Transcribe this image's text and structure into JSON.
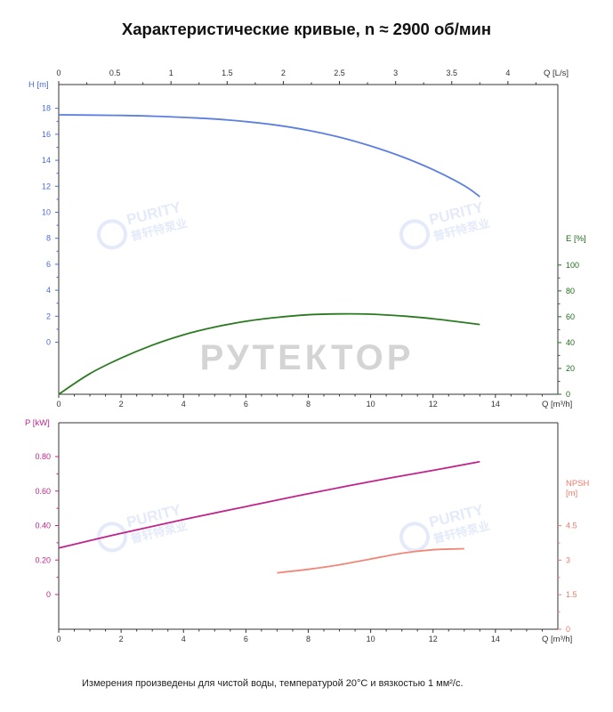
{
  "title": "Характеристические кривые, n ≈ 2900 об/мин",
  "footnote": "Измерения произведены для чистой воды, температурой 20°C и вязкостью 1 мм²/с.",
  "watermarks": {
    "center": "РУТЕКТОР",
    "logo_en": "PURITY",
    "logo_cn": "普轩特泵业"
  },
  "colors": {
    "head": "#5b7fe0",
    "efficiency": "#2a7a20",
    "power": "#c0248c",
    "npsh": "#f08878",
    "head_axis": "#4a6ad8",
    "eff_axis": "#1f6e1a",
    "power_axis": "#c0248c",
    "npsh_axis": "#ef7a6a",
    "axis": "#333333"
  },
  "chart_data": [
    {
      "type": "line",
      "x_label": "Q [m³/h]",
      "x_ticks": [
        "0",
        "2",
        "4",
        "6",
        "8",
        "10",
        "12",
        "14"
      ],
      "x_top_label": "Q [L/s]",
      "x_top_ticks": [
        "0",
        "0.5",
        "1",
        "1.5",
        "2",
        "2.5",
        "3",
        "3.5",
        "4"
      ],
      "xlim": [
        0,
        16
      ],
      "y_left_label": "H [m]",
      "y_left_ticks": [
        "0",
        "2",
        "4",
        "6",
        "8",
        "10",
        "12",
        "14",
        "16",
        "18"
      ],
      "y_right_label": "E [%]",
      "y_right_ticks": [
        "0",
        "20",
        "40",
        "60",
        "80",
        "100"
      ],
      "series": [
        {
          "name": "H [m]",
          "axis": "left",
          "x": [
            0,
            1,
            2,
            3,
            4,
            5,
            6,
            7,
            8,
            9,
            10,
            11,
            12,
            13,
            13.5
          ],
          "y": [
            17.5,
            17.48,
            17.45,
            17.4,
            17.3,
            17.18,
            16.98,
            16.7,
            16.3,
            15.78,
            15.1,
            14.28,
            13.28,
            12.05,
            11.2
          ]
        },
        {
          "name": "E [%]",
          "axis": "right",
          "x": [
            0,
            1,
            2,
            3,
            4,
            5,
            6,
            7,
            8,
            9,
            10,
            11,
            12,
            13,
            13.5
          ],
          "y": [
            0,
            16,
            28,
            38,
            46,
            52,
            56.5,
            59.5,
            61.5,
            62.2,
            62,
            60.6,
            58.5,
            55.5,
            54
          ]
        }
      ]
    },
    {
      "type": "line",
      "x_label": "Q [m³/h]",
      "x_ticks": [
        "0",
        "2",
        "4",
        "6",
        "8",
        "10",
        "12",
        "14"
      ],
      "xlim": [
        0,
        16
      ],
      "y_left_label": "P [kW]",
      "y_left_ticks": [
        "0",
        "0.20",
        "0.40",
        "0.60",
        "0.80"
      ],
      "y_right_label": "NPSH\n[m]",
      "y_right_ticks": [
        "0",
        "1.5",
        "3",
        "4.5"
      ],
      "series": [
        {
          "name": "P [kW]",
          "axis": "left",
          "x": [
            0,
            2,
            4,
            6,
            8,
            10,
            12,
            13.5
          ],
          "y": [
            0.27,
            0.355,
            0.435,
            0.51,
            0.585,
            0.655,
            0.72,
            0.77
          ]
        },
        {
          "name": "NPSH [m]",
          "axis": "right",
          "x": [
            7,
            8,
            9,
            10,
            11,
            12,
            13
          ],
          "y": [
            2.45,
            2.6,
            2.8,
            3.05,
            3.3,
            3.45,
            3.5
          ]
        }
      ]
    }
  ]
}
